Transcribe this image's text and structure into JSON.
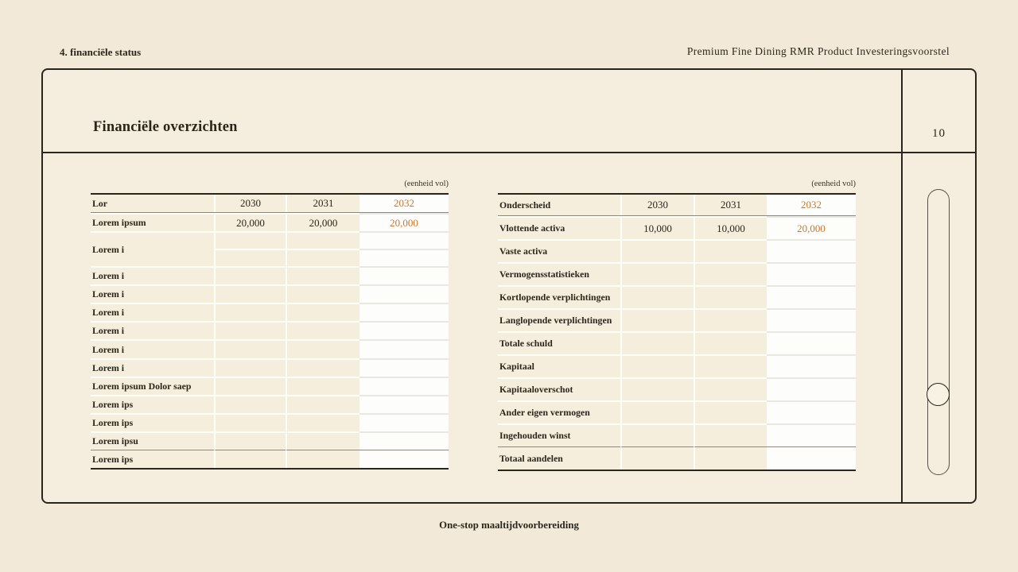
{
  "colors": {
    "accent": "#c8772e",
    "background": "#f2e9d8",
    "surface": "#f5eddd",
    "ink": "#2b261c"
  },
  "top_bar": {
    "section_label": "4. financiële status",
    "document_title": "Premium Fine Dining RMR Product Investeringsvoorstel"
  },
  "slide": {
    "title": "Financiële overzichten",
    "page_number": "10",
    "unit_note": "(eenheid vol)",
    "tables": [
      {
        "name": "left-financial-table",
        "columns": [
          "Lor",
          "2030",
          "2031",
          "2032"
        ],
        "rows": [
          {
            "label": "Lorem ipsum",
            "values": [
              "20,000",
              "20,000",
              "20,000"
            ]
          },
          {
            "label": "Lorem i",
            "values": [
              "",
              "",
              ""
            ],
            "tall": true
          },
          {
            "label": "Lorem i",
            "values": [
              "",
              "",
              ""
            ]
          },
          {
            "label": "Lorem i",
            "values": [
              "",
              "",
              ""
            ]
          },
          {
            "label": "Lorem i",
            "values": [
              "",
              "",
              ""
            ]
          },
          {
            "label": "Lorem i",
            "values": [
              "",
              "",
              ""
            ]
          },
          {
            "label": "Lorem i",
            "values": [
              "",
              "",
              ""
            ]
          },
          {
            "label": "Lorem i",
            "values": [
              "",
              "",
              ""
            ]
          },
          {
            "label": "Lorem ipsum Dolor saep",
            "values": [
              "",
              "",
              ""
            ]
          },
          {
            "label": "Lorem ips",
            "values": [
              "",
              "",
              ""
            ]
          },
          {
            "label": "Lorem ips",
            "values": [
              "",
              "",
              ""
            ]
          },
          {
            "label": "Lorem ipsu",
            "values": [
              "",
              "",
              ""
            ]
          },
          {
            "label": "Lorem ips",
            "values": [
              "",
              "",
              ""
            ],
            "total": true
          }
        ]
      },
      {
        "name": "right-financial-table",
        "columns": [
          "Onderscheid",
          "2030",
          "2031",
          "2032"
        ],
        "rows": [
          {
            "label": "Vlottende activa",
            "values": [
              "10,000",
              "10,000",
              "20,000"
            ]
          },
          {
            "label": "Vaste activa",
            "values": [
              "",
              "",
              ""
            ]
          },
          {
            "label": "Vermogensstatistieken",
            "values": [
              "",
              "",
              ""
            ]
          },
          {
            "label": "Kortlopende verplichtingen",
            "values": [
              "",
              "",
              ""
            ]
          },
          {
            "label": "Langlopende verplichtingen",
            "values": [
              "",
              "",
              ""
            ]
          },
          {
            "label": "Totale schuld",
            "values": [
              "",
              "",
              ""
            ]
          },
          {
            "label": "Kapitaal",
            "values": [
              "",
              "",
              ""
            ]
          },
          {
            "label": "Kapitaaloverschot",
            "values": [
              "",
              "",
              ""
            ]
          },
          {
            "label": "Ander eigen vermogen",
            "values": [
              "",
              "",
              ""
            ]
          },
          {
            "label": "Ingehouden winst",
            "values": [
              "",
              "",
              ""
            ]
          },
          {
            "label": "Totaal aandelen",
            "values": [
              "",
              "",
              ""
            ],
            "total": true
          }
        ]
      }
    ]
  },
  "footer": {
    "tagline": "One-stop maaltijdvoorbereiding"
  }
}
